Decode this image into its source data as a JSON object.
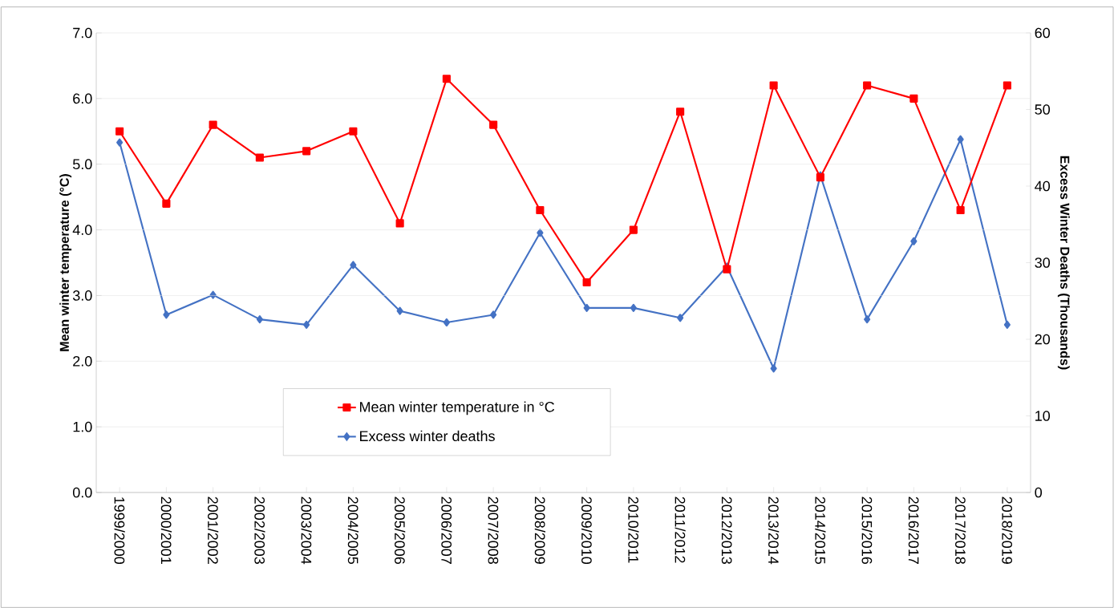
{
  "chart_data": {
    "type": "line",
    "categories": [
      "1999/2000",
      "2000/2001",
      "2001/2002",
      "2002/2003",
      "2003/2004",
      "2004/2005",
      "2005/2006",
      "2006/2007",
      "2007/2008",
      "2008/2009",
      "2009/2010",
      "2010/2011",
      "2011/2012",
      "2012/2013",
      "2013/2014",
      "2014/2015",
      "2015/2016",
      "2016/2017",
      "2017/2018",
      "2018/2019"
    ],
    "series": [
      {
        "name": "Mean winter temperature in °C",
        "color": "#ff0000",
        "marker": "square",
        "values": [
          5.5,
          4.4,
          5.6,
          5.1,
          5.2,
          5.5,
          4.1,
          6.3,
          5.6,
          4.3,
          3.2,
          4.0,
          5.8,
          3.4,
          6.2,
          4.8,
          6.2,
          6.0,
          4.3,
          6.2
        ]
      },
      {
        "name": "Excess winter deaths",
        "color": "#4472c4",
        "marker": "diamond",
        "axis": "y2",
        "values": [
          45.7,
          23.2,
          25.8,
          22.6,
          21.9,
          29.7,
          23.7,
          22.2,
          23.2,
          33.9,
          24.1,
          24.1,
          22.8,
          29.5,
          16.2,
          41.4,
          22.6,
          32.8,
          46.1,
          21.9
        ]
      }
    ],
    "ylabel": "Mean winter temperature (°C)",
    "y2label": "Excess Winter Deaths (Thousands)",
    "ylim": [
      0,
      7
    ],
    "yticks": [
      {
        "value": 0,
        "label": "0.0"
      },
      {
        "value": 1,
        "label": "1.0"
      },
      {
        "value": 2,
        "label": "2.0"
      },
      {
        "value": 3,
        "label": "3.0"
      },
      {
        "value": 4,
        "label": "4.0"
      },
      {
        "value": 5,
        "label": "5.0"
      },
      {
        "value": 6,
        "label": "6.0"
      },
      {
        "value": 7,
        "label": "7.0"
      }
    ],
    "y2lim": [
      0,
      60
    ],
    "y2ticks": [
      0,
      10,
      20,
      30,
      40,
      50,
      60
    ],
    "grid": "y",
    "legend": "bottom left",
    "line_style": "solid"
  }
}
